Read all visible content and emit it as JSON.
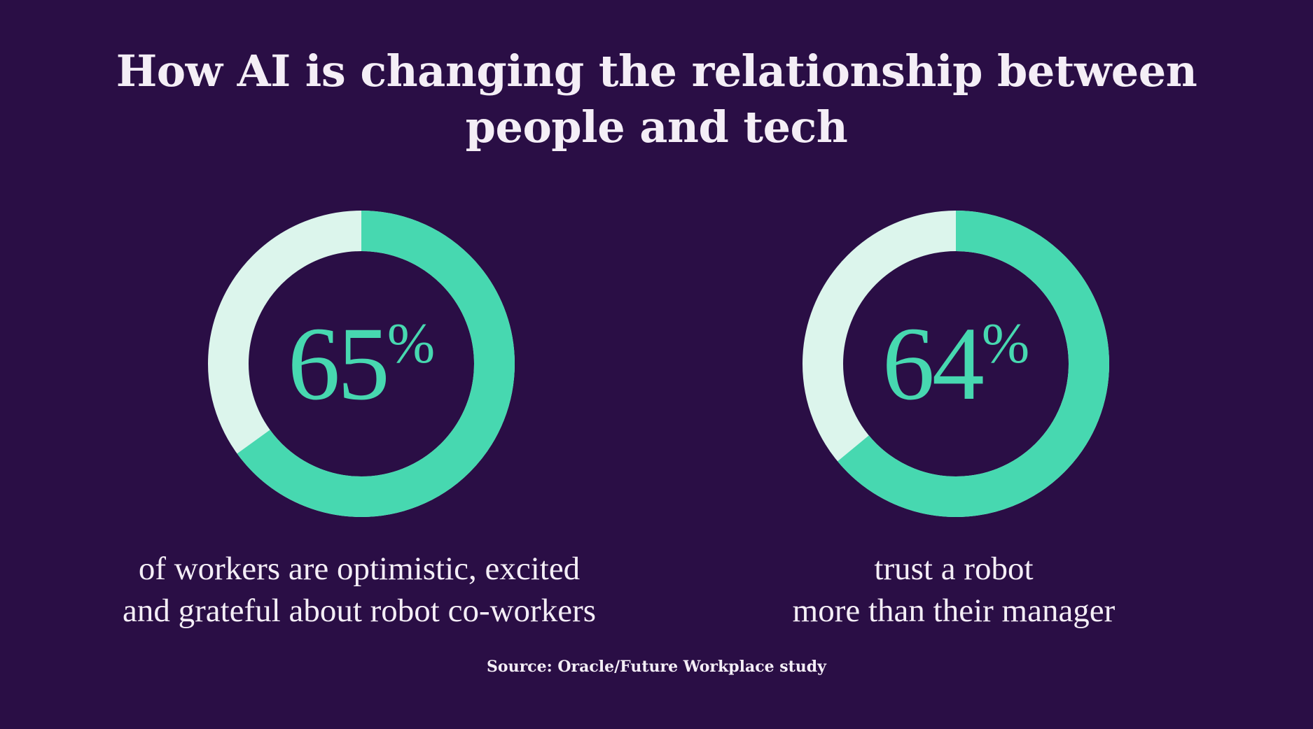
{
  "title_lines": [
    "How AI is changing the relationship between",
    "people and tech"
  ],
  "colors": {
    "background": "#2a0e45",
    "fill": "#47d8b0",
    "track": "#dcf5ec",
    "text": "#f4eef6"
  },
  "chart_data": [
    {
      "type": "pie",
      "value": 65,
      "value_label": "65",
      "unit": "%",
      "caption_lines": [
        "of workers are optimistic, excited",
        "and grateful about robot co-workers"
      ]
    },
    {
      "type": "pie",
      "value": 64,
      "value_label": "64",
      "unit": "%",
      "caption_lines": [
        "trust a robot",
        "more than their manager"
      ]
    }
  ],
  "source": "Source: Oracle/Future Workplace study"
}
